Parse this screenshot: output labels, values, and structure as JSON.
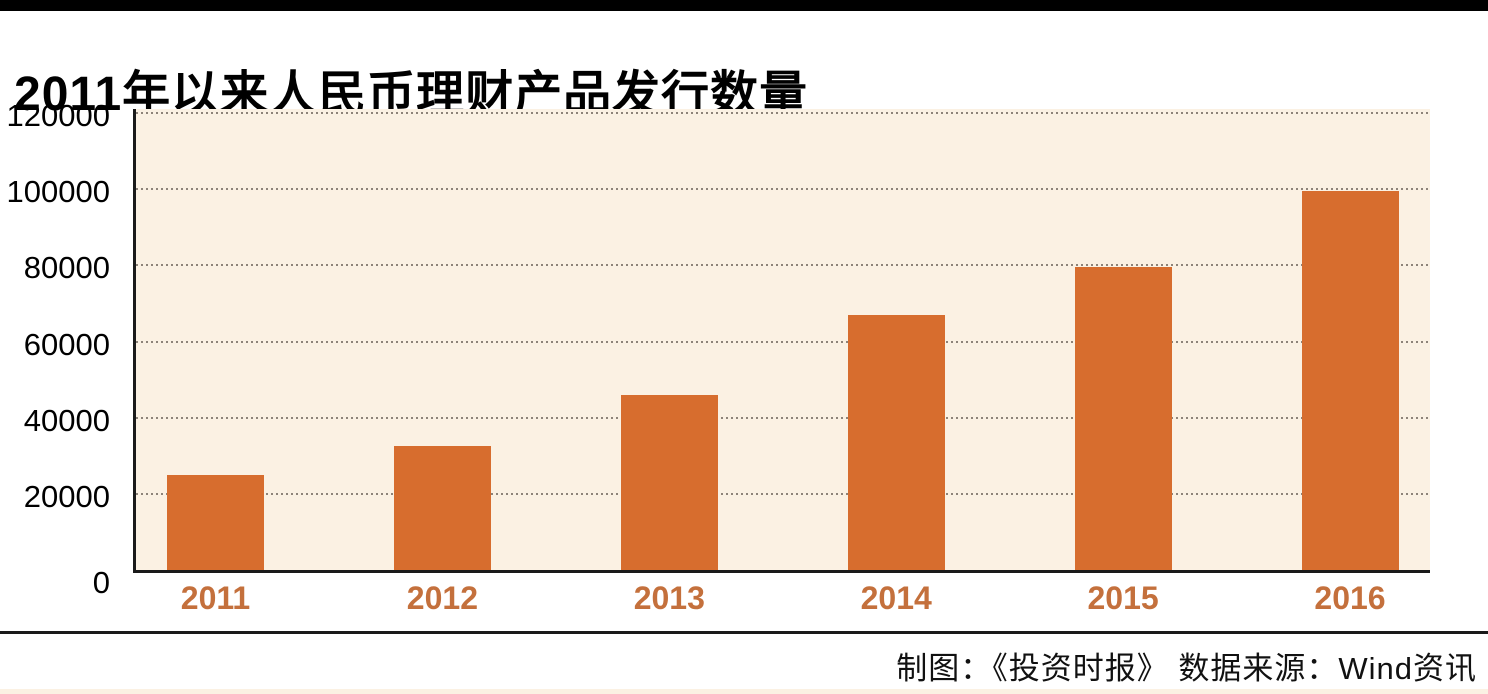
{
  "title": "2011年以来人民币理财产品发行数量",
  "footer": {
    "credit": "制图：《投资时报》  数据来源：Wind资讯"
  },
  "colors": {
    "top_bar": "#000000",
    "title_text": "#000000",
    "plot_bg": "#fbf1e3",
    "bar": "#d76d2e",
    "grid_dot": "#8d8379",
    "axis": "#1a1a1a",
    "y_label": "#000000",
    "x_label": "#c4703c",
    "footer_divider": "#1a1a1a",
    "footer_text": "#111111",
    "bottom_strip": "#fbf1e3"
  },
  "chart_data": {
    "type": "bar",
    "title": "2011年以来人民币理财产品发行数量",
    "categories": [
      "2011",
      "2012",
      "2013",
      "2014",
      "2015",
      "2016"
    ],
    "values": [
      25000,
      32500,
      46000,
      67000,
      79500,
      99500
    ],
    "xlabel": "",
    "ylabel": "",
    "ylim": [
      0,
      120000
    ],
    "yticks": [
      0,
      20000,
      40000,
      60000,
      80000,
      100000,
      120000
    ],
    "ytick_labels": [
      "0",
      "20000",
      "40000",
      "60000",
      "80000",
      "100000",
      "120000"
    ],
    "grid": "horizontal dotted lines at every 20000, including top line at 120000",
    "legend": "none",
    "bar_color": "#d76d2e",
    "plot_background": "#fbf1e3",
    "source_note": "制图：《投资时报》  数据来源：Wind资讯"
  }
}
